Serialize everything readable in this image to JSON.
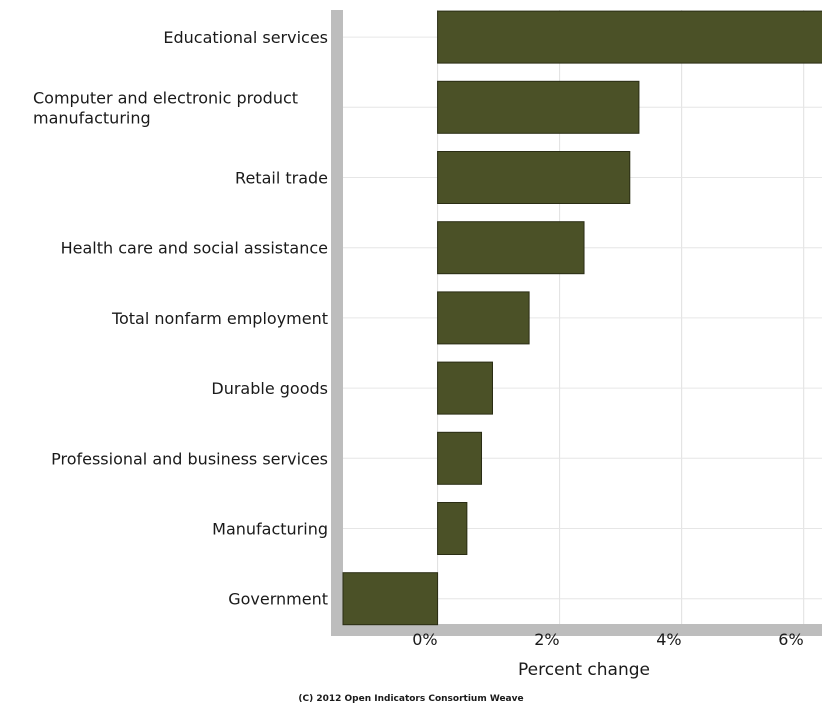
{
  "chart_data": {
    "type": "bar",
    "orientation": "horizontal",
    "categories": [
      "Educational services",
      "Computer and electronic product manufacturing",
      "Retail trade",
      "Health care and social assistance",
      "Total nonfarm employment",
      "Durable goods",
      "Professional and business services",
      "Manufacturing",
      "Government"
    ],
    "category_lines": [
      [
        "Educational services"
      ],
      [
        "Computer and electronic product",
        "manufacturing"
      ],
      [
        "Retail trade"
      ],
      [
        "Health care and social assistance"
      ],
      [
        "Total nonfarm employment"
      ],
      [
        "Durable goods"
      ],
      [
        "Professional and business services"
      ],
      [
        "Manufacturing"
      ],
      [
        "Government"
      ]
    ],
    "values": [
      6.5,
      3.3,
      3.15,
      2.4,
      1.5,
      0.9,
      0.72,
      0.48,
      -1.55
    ],
    "xlabel": "Percent change",
    "ylabel": "",
    "xlim": [
      -1.55,
      6.3
    ],
    "xticks": [
      0,
      2,
      4,
      6
    ],
    "xtick_labels": [
      "0%",
      "2%",
      "4%",
      "6%"
    ],
    "grid": true,
    "bar_color": "#4b5127",
    "axis_color": "#bdbdbd"
  },
  "footer": {
    "credit": "(C) 2012 Open Indicators Consortium Weave"
  }
}
